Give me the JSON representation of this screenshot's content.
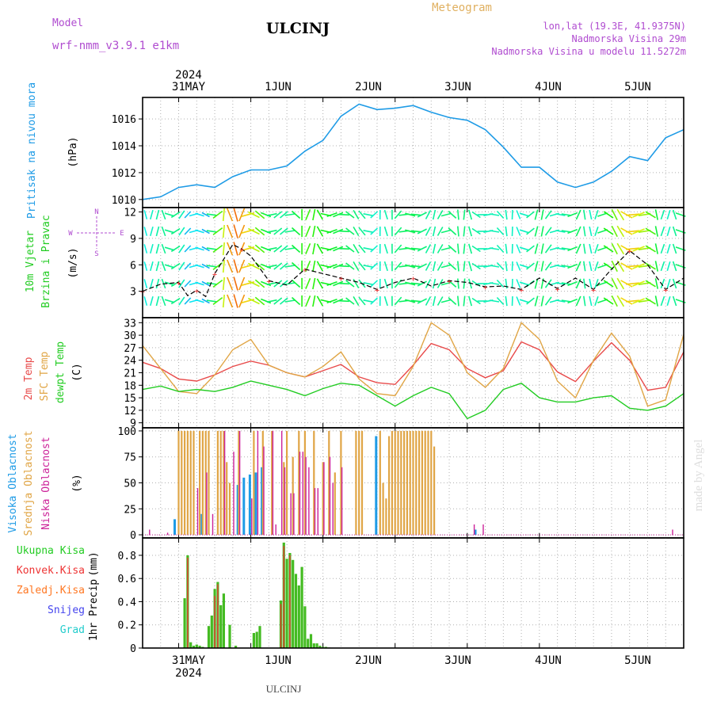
{
  "header": {
    "model_label": "Model",
    "model_name": "wrf-nmm_v3.9.1 e1km",
    "station": "ULCINJ",
    "product": "Meteogram",
    "coords": "lon,lat (19.3E, 41.9375N)",
    "altitude": "Nadmorska Visina 29m",
    "model_altitude": "Nadmorska Visina u modelu 11.5272m",
    "footer_station": "ULCINJ",
    "watermark": "made by Angel"
  },
  "colors": {
    "pressure": "#1e9be6",
    "temp2m": "#e84a4a",
    "sfc": "#e0a545",
    "dewpt": "#22cc22",
    "high_cloud": "#1e9be6",
    "mid_cloud": "#e0a545",
    "low_cloud": "#cc2299",
    "precip_total": "#44bb22",
    "precip_conv": "#ee3333",
    "precip_frozen": "#ff7722",
    "snow": "#4444ee",
    "hail": "#22cccc",
    "axis_title_purple": "#b04cd0"
  },
  "chart_data": [
    {
      "type": "line",
      "id": "pressure",
      "ylabel_main": "Pritisak na nivou mora",
      "ylabel_unit": "(hPa)",
      "ylim": [
        1009.4,
        1017.6
      ],
      "yticks": [
        "1010",
        "1012",
        "1014",
        "1016"
      ],
      "grid": true,
      "x": [
        0,
        6,
        12,
        18,
        24,
        30,
        36,
        42,
        48,
        54,
        60,
        66,
        72,
        78,
        84,
        90,
        96,
        102,
        108,
        114,
        120,
        126,
        132,
        138,
        144,
        150,
        156,
        162,
        168,
        174,
        180
      ],
      "values": [
        1010.0,
        1010.2,
        1010.9,
        1011.1,
        1010.9,
        1011.7,
        1012.2,
        1012.2,
        1012.5,
        1013.6,
        1014.4,
        1016.2,
        1017.1,
        1016.7,
        1016.8,
        1017.0,
        1016.5,
        1016.1,
        1015.9,
        1015.2,
        1013.9,
        1012.4,
        1012.4,
        1011.3,
        1010.9,
        1011.3,
        1012.1,
        1013.2,
        1012.9,
        1014.6,
        1015.2
      ]
    },
    {
      "type": "line",
      "id": "wind",
      "ylabel_main": "10m Vjetar",
      "ylabel_sub": "Brzina i Pravac",
      "ylabel_unit": "(m/s)",
      "compass": [
        "N",
        "W",
        "E",
        "S"
      ],
      "ylim": [
        0,
        12.5
      ],
      "yticks": [
        "3",
        "6",
        "9",
        "12"
      ],
      "grid": true,
      "x": [
        0,
        6,
        12,
        15,
        18,
        21,
        24,
        30,
        33,
        36,
        42,
        48,
        54,
        60,
        66,
        72,
        78,
        84,
        90,
        96,
        102,
        108,
        114,
        120,
        126,
        132,
        138,
        144,
        150,
        156,
        162,
        168,
        174,
        180
      ],
      "values": [
        3.0,
        3.8,
        4.0,
        2.5,
        3.1,
        2.4,
        5.0,
        8.3,
        7.8,
        7.0,
        4.2,
        3.7,
        5.5,
        5.0,
        4.5,
        4.0,
        3.2,
        4.0,
        4.5,
        3.6,
        4.2,
        4.0,
        3.5,
        3.6,
        3.2,
        4.5,
        3.3,
        4.5,
        3.2,
        5.5,
        7.6,
        6.0,
        3.2,
        4.5
      ]
    },
    {
      "type": "line",
      "id": "temperature",
      "ylabel_main": "2m Temp",
      "ylabel_sfc": "SFC Temp",
      "ylabel_dew": "dewpt Temp",
      "ylabel_unit": "(C)",
      "ylim": [
        7.8,
        34.2
      ],
      "yticks": [
        "9",
        "12",
        "15",
        "18",
        "21",
        "24",
        "27",
        "30",
        "33"
      ],
      "grid": true,
      "x": [
        0,
        6,
        12,
        18,
        24,
        30,
        36,
        42,
        48,
        54,
        60,
        66,
        72,
        78,
        84,
        90,
        96,
        102,
        108,
        114,
        120,
        126,
        132,
        138,
        144,
        150,
        156,
        162,
        168,
        174,
        180
      ],
      "series": [
        {
          "name": "2m Temp",
          "values": [
            23.5,
            22.0,
            19.5,
            19.0,
            20.5,
            22.5,
            23.8,
            22.8,
            21.0,
            20.0,
            21.5,
            23.0,
            20.0,
            18.6,
            18.2,
            22.8,
            28.0,
            26.5,
            22.0,
            19.8,
            21.5,
            28.4,
            26.5,
            21.2,
            18.9,
            23.8,
            28.2,
            24.0,
            16.8,
            17.5,
            26.0
          ]
        },
        {
          "name": "SFC Temp",
          "values": [
            27.5,
            22.0,
            16.5,
            16.0,
            20.5,
            26.5,
            29.0,
            22.8,
            21.0,
            20.0,
            22.5,
            26.0,
            19.5,
            16.0,
            15.5,
            22.5,
            33.0,
            30.0,
            21.0,
            17.5,
            22.0,
            33.0,
            29.0,
            19.0,
            15.0,
            24.0,
            30.5,
            25.0,
            13.0,
            14.5,
            30.2
          ]
        },
        {
          "name": "dewpt Temp",
          "values": [
            17.0,
            17.8,
            16.5,
            17.0,
            16.5,
            17.5,
            19.0,
            18.0,
            17.0,
            15.5,
            17.2,
            18.5,
            18.0,
            15.5,
            13.0,
            15.5,
            17.5,
            16.0,
            10.0,
            12.0,
            17.0,
            18.5,
            15.0,
            14.0,
            14.0,
            15.0,
            15.5,
            12.5,
            12.0,
            13.0,
            16.0
          ]
        }
      ]
    },
    {
      "type": "bar",
      "id": "clouds",
      "ylabel_high": "Visoka Oblacnost",
      "ylabel_mid": "Srednja Oblacnost",
      "ylabel_low": "Niska Oblacnost",
      "ylabel_unit": "(%)",
      "ylim": [
        -3,
        103
      ],
      "yticks": [
        "0",
        "25",
        "50",
        "75",
        "100"
      ],
      "grid": true,
      "series": [
        {
          "name": "Visoka Oblacnost",
          "x": [
            11,
            20,
            32,
            34,
            36,
            38,
            40,
            78,
            111
          ],
          "values": [
            15,
            20,
            48,
            55,
            58,
            60,
            65,
            95,
            5
          ]
        },
        {
          "name": "Srednja Oblacnost",
          "x": [
            12,
            13,
            14,
            15,
            16,
            17,
            19,
            20,
            21,
            22,
            25,
            26,
            27,
            28,
            29,
            32,
            37,
            40,
            43,
            47,
            48,
            50,
            52,
            54,
            57,
            60,
            62,
            64,
            66,
            71,
            72,
            73,
            79,
            80,
            81,
            82,
            83,
            84,
            85,
            86,
            87,
            88,
            89,
            90,
            91,
            92,
            93,
            94,
            95,
            96,
            97
          ],
          "values": [
            100,
            100,
            100,
            100,
            100,
            100,
            100,
            100,
            100,
            100,
            100,
            100,
            100,
            70,
            50,
            100,
            100,
            100,
            100,
            70,
            100,
            75,
            100,
            100,
            100,
            70,
            100,
            60,
            100,
            100,
            100,
            100,
            100,
            50,
            35,
            95,
            100,
            100,
            100,
            100,
            100,
            100,
            100,
            100,
            100,
            100,
            100,
            100,
            100,
            100,
            85
          ]
        },
        {
          "name": "Niska Oblacnost",
          "x": [
            2,
            8,
            18,
            21,
            23,
            27,
            30,
            32,
            36,
            38,
            40,
            43,
            44,
            46,
            47,
            49,
            50,
            52,
            53,
            54,
            55,
            57,
            58,
            60,
            62,
            63,
            66,
            110,
            113,
            176
          ],
          "values": [
            5,
            2,
            45,
            60,
            20,
            100,
            80,
            100,
            35,
            100,
            85,
            100,
            10,
            100,
            65,
            40,
            40,
            80,
            80,
            75,
            65,
            45,
            45,
            70,
            75,
            50,
            65,
            10,
            10,
            5
          ]
        }
      ]
    },
    {
      "type": "bar",
      "id": "precip",
      "ylabel_main": "1hr Precip",
      "ylabel_unit": "(mm)",
      "legend": [
        "Ukupna Kisa",
        "Konvek.Kisa",
        "Zaledj.Kisa",
        "Snijeg",
        "Grad"
      ],
      "ylim": [
        0,
        0.95
      ],
      "yticks": [
        "0",
        "0.2",
        "0.4",
        "0.6",
        "0.8"
      ],
      "grid": true,
      "series": [
        {
          "name": "Ukupna Kisa",
          "x": [
            14,
            15,
            16,
            17,
            18,
            19,
            20,
            22,
            23,
            24,
            25,
            26,
            27,
            29,
            31,
            37,
            38,
            39,
            46,
            47,
            48,
            49,
            50,
            51,
            52,
            53,
            54,
            55,
            56,
            57,
            58,
            59,
            60,
            61,
            62
          ],
          "values": [
            0.43,
            0.8,
            0.05,
            0.02,
            0.03,
            0.02,
            0.01,
            0.19,
            0.28,
            0.51,
            0.57,
            0.37,
            0.47,
            0.2,
            0.02,
            0.13,
            0.14,
            0.19,
            0.41,
            0.91,
            0.77,
            0.82,
            0.76,
            0.64,
            0.54,
            0.7,
            0.36,
            0.08,
            0.12,
            0.04,
            0.04,
            0.02,
            0.01,
            0.01,
            0.005
          ]
        },
        {
          "name": "Konvek.Kisa",
          "x": [
            15,
            24,
            25,
            46,
            47,
            49
          ],
          "values": [
            0.78,
            0.45,
            0.55,
            0.38,
            0.88,
            0.8
          ]
        }
      ]
    }
  ],
  "timeline": {
    "hour_min": 0,
    "hour_max": 180,
    "year": "2024",
    "days": [
      {
        "label": "31MAY",
        "hour": 12
      },
      {
        "label": "1JUN",
        "hour": 36
      },
      {
        "label": "2JUN",
        "hour": 60
      },
      {
        "label": "3JUN",
        "hour": 84
      },
      {
        "label": "4JUN",
        "hour": 108
      },
      {
        "label": "5JUN",
        "hour": 132
      }
    ]
  }
}
